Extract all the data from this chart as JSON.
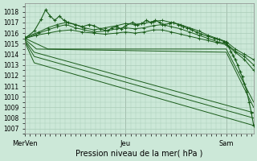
{
  "title": "",
  "xlabel": "Pression niveau de la mer( hPa )",
  "ylabel": "",
  "bg_color": "#cce8d8",
  "grid_color": "#aaccb8",
  "line_color": "#1a5c1a",
  "ylim": [
    1006.5,
    1018.8
  ],
  "yticks": [
    1007,
    1008,
    1009,
    1010,
    1011,
    1012,
    1013,
    1014,
    1015,
    1016,
    1017,
    1018
  ],
  "xtick_labels": [
    "MerVen",
    "Jeu",
    "Sam"
  ],
  "xtick_positions": [
    0.0,
    0.44,
    0.88
  ],
  "xlim": [
    0.0,
    1.0
  ],
  "lines_upper": [
    [
      [
        0.0,
        1015.6
      ],
      [
        0.06,
        1016.1
      ],
      [
        0.1,
        1016.5
      ],
      [
        0.14,
        1016.8
      ],
      [
        0.18,
        1017.0
      ],
      [
        0.22,
        1016.8
      ],
      [
        0.26,
        1016.5
      ],
      [
        0.3,
        1016.3
      ],
      [
        0.35,
        1016.5
      ],
      [
        0.4,
        1016.7
      ],
      [
        0.44,
        1016.9
      ],
      [
        0.48,
        1016.8
      ],
      [
        0.52,
        1016.9
      ],
      [
        0.56,
        1017.1
      ],
      [
        0.6,
        1017.2
      ],
      [
        0.64,
        1017.0
      ],
      [
        0.68,
        1016.8
      ],
      [
        0.72,
        1016.5
      ],
      [
        0.76,
        1016.2
      ],
      [
        0.8,
        1015.8
      ],
      [
        0.84,
        1015.5
      ],
      [
        0.88,
        1015.2
      ],
      [
        0.92,
        1014.5
      ],
      [
        0.96,
        1014.0
      ],
      [
        1.0,
        1013.5
      ]
    ],
    [
      [
        0.0,
        1015.5
      ],
      [
        0.06,
        1016.0
      ],
      [
        0.1,
        1016.3
      ],
      [
        0.14,
        1016.6
      ],
      [
        0.18,
        1016.8
      ],
      [
        0.22,
        1016.5
      ],
      [
        0.26,
        1016.3
      ],
      [
        0.3,
        1016.1
      ],
      [
        0.35,
        1016.2
      ],
      [
        0.4,
        1016.4
      ],
      [
        0.44,
        1016.5
      ],
      [
        0.48,
        1016.4
      ],
      [
        0.52,
        1016.5
      ],
      [
        0.56,
        1016.7
      ],
      [
        0.6,
        1016.8
      ],
      [
        0.64,
        1016.6
      ],
      [
        0.68,
        1016.4
      ],
      [
        0.72,
        1016.1
      ],
      [
        0.76,
        1015.8
      ],
      [
        0.8,
        1015.5
      ],
      [
        0.84,
        1015.2
      ],
      [
        0.88,
        1015.0
      ],
      [
        0.92,
        1014.3
      ],
      [
        0.96,
        1013.8
      ],
      [
        1.0,
        1013.0
      ]
    ],
    [
      [
        0.0,
        1015.5
      ],
      [
        0.05,
        1015.8
      ],
      [
        0.1,
        1016.0
      ],
      [
        0.15,
        1016.2
      ],
      [
        0.2,
        1016.3
      ],
      [
        0.25,
        1016.1
      ],
      [
        0.3,
        1016.0
      ],
      [
        0.35,
        1015.9
      ],
      [
        0.4,
        1016.0
      ],
      [
        0.44,
        1016.1
      ],
      [
        0.48,
        1016.0
      ],
      [
        0.52,
        1016.1
      ],
      [
        0.56,
        1016.3
      ],
      [
        0.6,
        1016.3
      ],
      [
        0.64,
        1016.1
      ],
      [
        0.68,
        1015.9
      ],
      [
        0.72,
        1015.7
      ],
      [
        0.76,
        1015.5
      ],
      [
        0.8,
        1015.3
      ],
      [
        0.84,
        1015.1
      ],
      [
        0.88,
        1014.9
      ],
      [
        0.92,
        1014.2
      ],
      [
        0.96,
        1013.5
      ],
      [
        1.0,
        1012.5
      ]
    ]
  ],
  "line_zigzag": [
    [
      0.0,
      1015.5
    ],
    [
      0.04,
      1016.2
    ],
    [
      0.07,
      1017.3
    ],
    [
      0.09,
      1018.2
    ],
    [
      0.11,
      1017.6
    ],
    [
      0.13,
      1017.2
    ],
    [
      0.15,
      1017.6
    ],
    [
      0.17,
      1017.2
    ],
    [
      0.19,
      1017.0
    ],
    [
      0.22,
      1016.8
    ],
    [
      0.25,
      1016.6
    ],
    [
      0.28,
      1016.8
    ],
    [
      0.3,
      1016.7
    ],
    [
      0.33,
      1016.4
    ],
    [
      0.36,
      1016.2
    ],
    [
      0.38,
      1016.5
    ],
    [
      0.4,
      1016.6
    ],
    [
      0.42,
      1016.4
    ],
    [
      0.44,
      1016.7
    ],
    [
      0.47,
      1017.0
    ],
    [
      0.49,
      1016.8
    ],
    [
      0.51,
      1016.9
    ],
    [
      0.53,
      1017.2
    ],
    [
      0.55,
      1017.0
    ],
    [
      0.57,
      1017.2
    ],
    [
      0.59,
      1017.0
    ],
    [
      0.61,
      1016.8
    ],
    [
      0.63,
      1016.9
    ],
    [
      0.65,
      1017.0
    ],
    [
      0.67,
      1016.8
    ],
    [
      0.69,
      1016.6
    ],
    [
      0.71,
      1016.5
    ],
    [
      0.73,
      1016.3
    ],
    [
      0.75,
      1016.1
    ],
    [
      0.77,
      1015.9
    ],
    [
      0.8,
      1015.7
    ],
    [
      0.83,
      1015.5
    ],
    [
      0.85,
      1015.4
    ],
    [
      0.87,
      1015.2
    ],
    [
      0.88,
      1015.1
    ],
    [
      0.89,
      1014.7
    ],
    [
      0.9,
      1014.3
    ],
    [
      0.91,
      1013.9
    ],
    [
      0.92,
      1013.5
    ],
    [
      0.93,
      1013.0
    ],
    [
      0.94,
      1012.4
    ],
    [
      0.95,
      1011.9
    ],
    [
      0.96,
      1011.2
    ],
    [
      0.97,
      1010.5
    ],
    [
      0.98,
      1009.5
    ],
    [
      0.99,
      1008.5
    ],
    [
      1.0,
      1007.3
    ]
  ],
  "lines_lower": [
    [
      [
        0.0,
        1015.5
      ],
      [
        0.05,
        1015.0
      ],
      [
        0.1,
        1014.5
      ],
      [
        0.88,
        1014.5
      ],
      [
        1.0,
        1009.5
      ]
    ],
    [
      [
        0.0,
        1015.4
      ],
      [
        0.05,
        1014.5
      ],
      [
        0.88,
        1014.2
      ],
      [
        1.0,
        1009.0
      ]
    ],
    [
      [
        0.0,
        1015.3
      ],
      [
        0.04,
        1014.2
      ],
      [
        1.0,
        1008.5
      ]
    ],
    [
      [
        0.0,
        1015.2
      ],
      [
        0.04,
        1013.8
      ],
      [
        1.0,
        1008.0
      ]
    ],
    [
      [
        0.0,
        1015.1
      ],
      [
        0.04,
        1013.2
      ],
      [
        1.0,
        1007.3
      ]
    ]
  ],
  "ylabel_fontsize": 6,
  "xlabel_fontsize": 7
}
